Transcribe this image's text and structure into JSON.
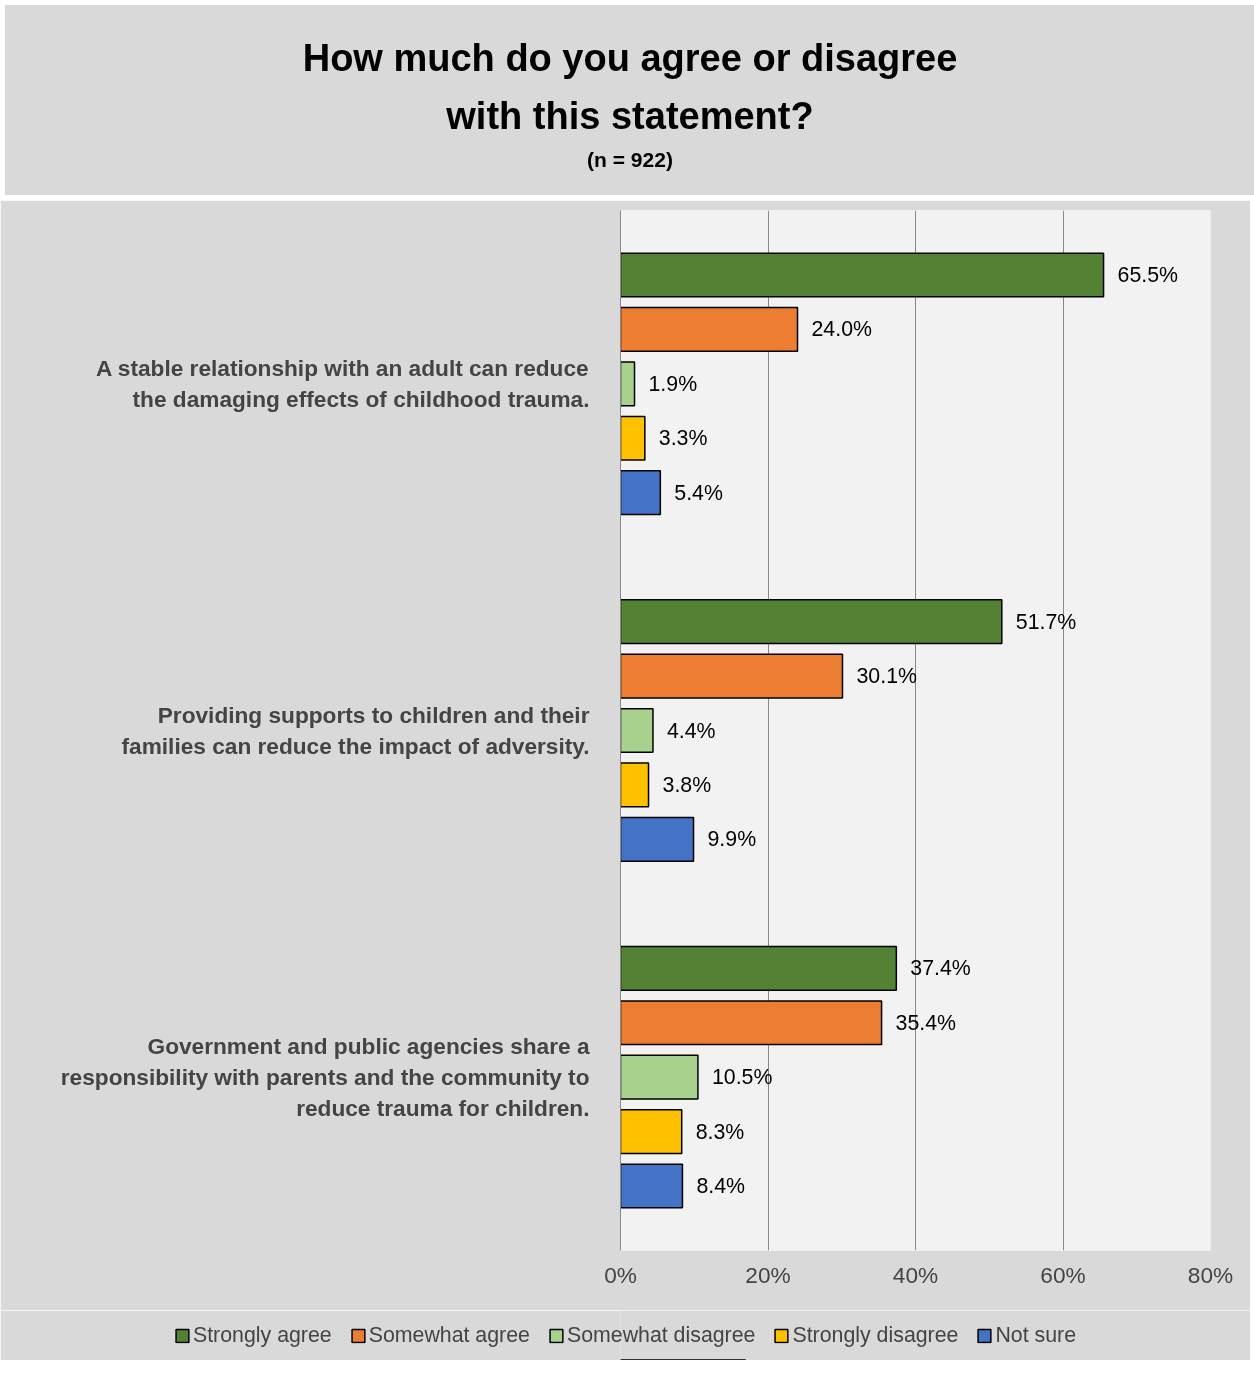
{
  "chart_data": {
    "type": "bar",
    "orientation": "horizontal",
    "title": "How much do you agree or disagree with this statement?",
    "subtitle": "(n = 922)",
    "categories": [
      "A stable relationship with an adult can reduce the damaging effects of childhood trauma.",
      "Providing supports to children and their families can reduce the impact of adversity.",
      "Government and public agencies share a responsibility with parents and the community to reduce trauma for children."
    ],
    "series": [
      {
        "name": "Strongly agree",
        "color": "#548235",
        "values": [
          65.5,
          51.7,
          37.4
        ],
        "value_labels": [
          "65.5%",
          "51.7%",
          "37.4%"
        ]
      },
      {
        "name": "Somewhat agree",
        "color": "#ed7d31",
        "values": [
          24.0,
          30.1,
          35.4
        ],
        "value_labels": [
          "24.0%",
          "30.1%",
          "35.4%"
        ]
      },
      {
        "name": "Somewhat disagree",
        "color": "#a9d18e",
        "values": [
          1.9,
          4.4,
          10.5
        ],
        "value_labels": [
          "1.9%",
          "4.4%",
          "10.5%"
        ]
      },
      {
        "name": "Strongly disagree",
        "color": "#ffc000",
        "values": [
          3.3,
          3.8,
          8.3
        ],
        "value_labels": [
          "3.3%",
          "3.8%",
          "8.3%"
        ]
      },
      {
        "name": "Not sure",
        "color": "#4472c4",
        "values": [
          5.4,
          9.9,
          8.4
        ],
        "value_labels": [
          "5.4%",
          "9.9%",
          "8.4%"
        ]
      }
    ],
    "xlim": [
      0,
      80
    ],
    "xticks": [
      {
        "value": 0,
        "label": "0%"
      },
      {
        "value": 20,
        "label": "20%"
      },
      {
        "value": 40,
        "label": "40%"
      },
      {
        "value": 60,
        "label": "60%"
      },
      {
        "value": 80,
        "label": "80%"
      }
    ],
    "grid": "x",
    "legend": "bottom"
  }
}
